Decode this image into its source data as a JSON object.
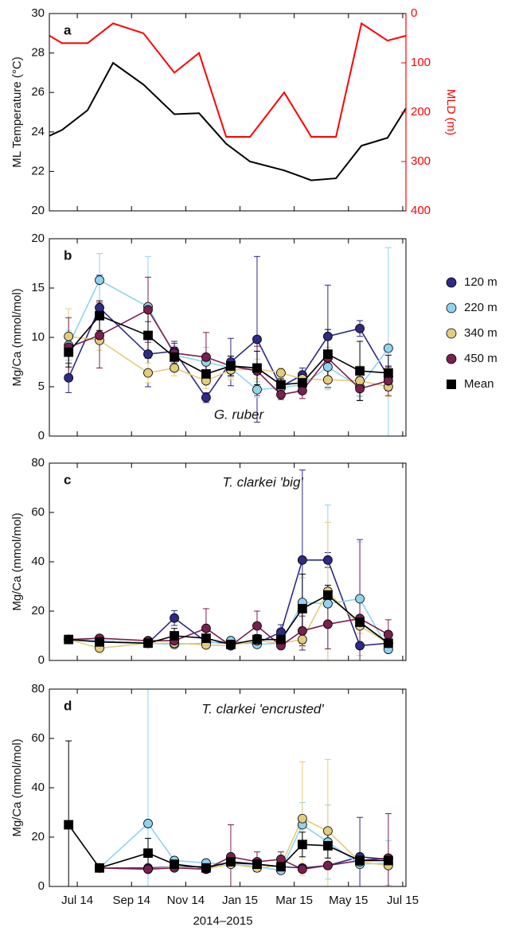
{
  "chart_data": [
    {
      "type": "line",
      "panel_label": "a",
      "ylabel": "ML Temperature (°C)",
      "y2label": "MLD (m)",
      "x": [
        -1.03,
        -0.56,
        0.38,
        1.32,
        2.44,
        3.58,
        4.49,
        5.49,
        6.37,
        7.63,
        8.63,
        9.54,
        10.48,
        11.44,
        12.12
      ],
      "xlim": [
        -1.03,
        12.12
      ],
      "ylim": [
        20,
        30
      ],
      "yticks": [
        20,
        22,
        24,
        26,
        28,
        30
      ],
      "y2lim": [
        0,
        400
      ],
      "y2ticks": [
        0,
        100,
        200,
        300,
        400
      ],
      "y2_inverted": true,
      "y2color": "#ff0000",
      "series": [
        {
          "color": "#000000",
          "values": [
            23.8,
            24.1,
            25.1,
            27.5,
            26.4,
            24.9,
            24.95,
            23.4,
            22.5,
            22.05,
            21.55,
            21.65,
            23.3,
            23.7,
            25.2
          ]
        },
        {
          "color": "#ff0000",
          "axis": "y2",
          "values": [
            45,
            60,
            60,
            20,
            40,
            120,
            80,
            250,
            250,
            160,
            250,
            250,
            20,
            55,
            45
          ]
        }
      ]
    },
    {
      "type": "errorline",
      "panel_label": "b",
      "ylabel": "Mg/Ca (mmol/mol)",
      "annotation": "G. ruber",
      "legend": "right",
      "x": [
        -0.32,
        0.82,
        2.61,
        3.58,
        4.75,
        5.66,
        6.63,
        7.51,
        8.3,
        9.24,
        10.42,
        11.47
      ],
      "xlim": [
        -1.03,
        12.12
      ],
      "ylim": [
        0,
        20
      ],
      "yticks": [
        0,
        5,
        10,
        15,
        20
      ],
      "series": [
        {
          "name": "120 m",
          "color": "#2e2a85",
          "marker": "circle",
          "values": [
            5.9,
            13.0,
            8.3,
            8.6,
            3.9,
            7.5,
            9.8,
            5.0,
            6.2,
            10.1,
            10.9,
            6.0
          ],
          "errors": [
            1.5,
            3.3,
            3.3,
            1.0,
            0.5,
            2.4,
            8.4,
            0.8,
            0.7,
            5.2,
            0.8,
            1.0
          ]
        },
        {
          "name": "220 m",
          "color": "#8fd3ef",
          "marker": "circle",
          "values": [
            9.2,
            15.8,
            13.1,
            8.2,
            7.5,
            6.9,
            4.7,
            4.9,
            5.2,
            7.0,
            5.0,
            8.9
          ],
          "errors": [
            1.5,
            2.7,
            5.1,
            1.0,
            1.5,
            1.0,
            0.8,
            0.6,
            0.8,
            2.0,
            1.0,
            10.2
          ]
        },
        {
          "name": "340 m",
          "color": "#e3cc7c",
          "marker": "circle",
          "values": [
            10.1,
            9.7,
            6.4,
            6.9,
            5.6,
            6.7,
            6.8,
            6.4,
            5.8,
            5.7,
            5.6,
            5.0
          ],
          "errors": [
            2.8,
            1.0,
            1.0,
            0.8,
            0.8,
            1.0,
            1.0,
            0.5,
            0.5,
            1.0,
            1.5,
            1.0
          ]
        },
        {
          "name": "450 m",
          "color": "#7a1f4f",
          "marker": "circle",
          "values": [
            9.0,
            10.2,
            12.8,
            8.4,
            8.0,
            7.1,
            6.6,
            4.2,
            4.6,
            7.9,
            4.8,
            5.6
          ],
          "errors": [
            3.0,
            3.3,
            3.3,
            1.0,
            2.5,
            1.0,
            2.5,
            0.5,
            0.8,
            2.0,
            1.2,
            1.5
          ]
        },
        {
          "name": "Mean",
          "color": "#000000",
          "marker": "square",
          "values": [
            8.5,
            12.2,
            10.2,
            8.0,
            6.3,
            7.1,
            6.9,
            5.2,
            5.4,
            8.3,
            6.6,
            6.4
          ],
          "errors": [
            1.5,
            1.5,
            2.3,
            1.0,
            1.0,
            1.0,
            1.7,
            0.6,
            0.8,
            2.5,
            3.0,
            1.8
          ]
        }
      ]
    },
    {
      "type": "errorline",
      "panel_label": "c",
      "ylabel": "Mg/Ca (mmol/mol)",
      "annotation": "T. clarkei 'big'",
      "x": [
        -0.32,
        0.82,
        2.61,
        3.58,
        4.75,
        5.66,
        6.63,
        7.51,
        8.3,
        9.24,
        10.42,
        11.47
      ],
      "xlim": [
        -1.03,
        12.12
      ],
      "ylim": [
        0,
        80
      ],
      "yticks": [
        0,
        20,
        40,
        60,
        80
      ],
      "series": [
        {
          "color": "#2e2a85",
          "marker": "circle",
          "values": [
            8.5,
            8.0,
            7.0,
            17.2,
            7.5,
            7.0,
            7.0,
            11.5,
            40.7,
            40.7,
            6.0,
            7.0
          ],
          "errors": [
            1,
            1,
            1,
            3,
            1,
            1,
            1,
            3,
            36.5,
            3,
            1,
            1
          ]
        },
        {
          "color": "#8fd3ef",
          "marker": "circle",
          "values": [
            8.5,
            8.0,
            7.0,
            6.5,
            7.0,
            8.0,
            6.5,
            7.0,
            23.5,
            23.0,
            25.0,
            4.5
          ],
          "errors": [
            1,
            1,
            1,
            1,
            1,
            1,
            1,
            1,
            10,
            40,
            23,
            1
          ]
        },
        {
          "color": "#e3cc7c",
          "marker": "circle",
          "values": [
            8.5,
            5.0,
            7.0,
            7.0,
            6.3,
            6.0,
            8.0,
            7.0,
            8.5,
            28.0,
            14.0,
            7.0
          ],
          "errors": [
            1,
            1,
            1,
            1,
            1,
            1,
            1,
            1,
            3,
            28,
            3,
            1
          ]
        },
        {
          "color": "#7a1f4f",
          "marker": "circle",
          "values": [
            8.5,
            9.0,
            8.0,
            8.0,
            13.0,
            6.0,
            14.0,
            6.0,
            12.0,
            14.7,
            17.0,
            10.5
          ],
          "errors": [
            1,
            1,
            1,
            1,
            8,
            1,
            6,
            1,
            6,
            10,
            32,
            6
          ]
        },
        {
          "color": "#000000",
          "marker": "square",
          "values": [
            8.5,
            7.5,
            7.0,
            10.0,
            9.0,
            6.5,
            8.5,
            8.5,
            21.0,
            26.5,
            15.5,
            7.0
          ],
          "errors": [
            1,
            1,
            1,
            3,
            3,
            1,
            2,
            2,
            14,
            4,
            2,
            1
          ]
        }
      ]
    },
    {
      "type": "errorline",
      "panel_label": "d",
      "ylabel": "Mg/Ca (mmol/mol)",
      "annotation": "T. clarkei 'encrusted'",
      "xlabel": "2014–2015",
      "x": [
        -0.32,
        0.82,
        2.61,
        3.58,
        4.75,
        5.66,
        6.63,
        7.51,
        8.3,
        9.24,
        10.42,
        11.47
      ],
      "xlim": [
        -1.03,
        12.12
      ],
      "ylim": [
        0,
        80
      ],
      "yticks": [
        0,
        20,
        40,
        60,
        80
      ],
      "xticks": [
        {
          "value": 0,
          "label": "Jul 14"
        },
        {
          "value": 2,
          "label": "Sep 14"
        },
        {
          "value": 4,
          "label": "Nov 14"
        },
        {
          "value": 6,
          "label": "Jan 15"
        },
        {
          "value": 8,
          "label": "Mar 15"
        },
        {
          "value": 10,
          "label": "May 15"
        },
        {
          "value": 12,
          "label": "Jul 15"
        }
      ],
      "series": [
        {
          "color": "#2e2a85",
          "marker": "circle",
          "values": [
            null,
            7.5,
            7.5,
            8,
            8,
            9.5,
            9,
            8,
            7.5,
            8.5,
            12,
            11
          ],
          "errors": [
            null,
            1,
            1,
            1,
            1,
            1,
            1,
            1,
            1,
            1,
            16,
            1
          ]
        },
        {
          "color": "#8fd3ef",
          "marker": "circle",
          "values": [
            null,
            7.5,
            25.5,
            10.5,
            9.5,
            9,
            8,
            6.5,
            25,
            18,
            9,
            9.5
          ],
          "errors": [
            null,
            1,
            60,
            1,
            1,
            1,
            1,
            1,
            9,
            15,
            1,
            9
          ]
        },
        {
          "color": "#e3cc7c",
          "marker": "circle",
          "values": [
            null,
            7.5,
            7,
            8,
            7,
            9,
            7.5,
            8.5,
            27.5,
            22.5,
            10,
            8.5
          ],
          "errors": [
            null,
            1,
            1,
            1,
            1,
            1,
            1,
            1,
            23,
            29,
            1,
            1
          ]
        },
        {
          "color": "#7a1f4f",
          "marker": "circle",
          "values": [
            null,
            7.5,
            7,
            7.5,
            7,
            12,
            10,
            11,
            7,
            8.5,
            10.5,
            11.5
          ],
          "errors": [
            null,
            1,
            1,
            1,
            1,
            13,
            4,
            3,
            1,
            1,
            2,
            18
          ]
        },
        {
          "color": "#000000",
          "marker": "square",
          "values": [
            25,
            7.5,
            13.5,
            9,
            7.5,
            10,
            9,
            8,
            17,
            16.5,
            10.5,
            10.5
          ],
          "errors": [
            34,
            1,
            6,
            2,
            1.5,
            2,
            2,
            2,
            5,
            5,
            2,
            2
          ]
        }
      ]
    }
  ]
}
